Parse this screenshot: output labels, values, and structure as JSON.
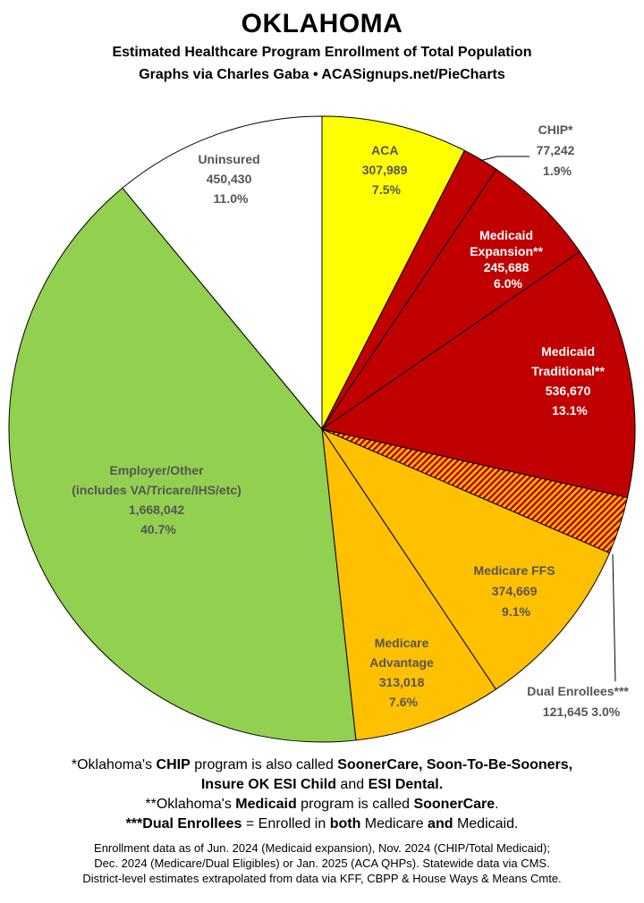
{
  "title": "OKLAHOMA",
  "subtitle1": "Estimated Healthcare Program Enrollment of Total Population",
  "subtitle2": "Graphs via Charles Gaba  •  ACASignups.net/PieCharts",
  "chart_data": {
    "type": "pie",
    "slices": [
      {
        "label": "ACA",
        "value": 307989,
        "value_text": "307,989",
        "percent": 7.5,
        "percent_text": "7.5%",
        "color": "#ffff00"
      },
      {
        "label": "CHIP*",
        "value": 77242,
        "value_text": "77,242",
        "percent": 1.9,
        "percent_text": "1.9%",
        "color": "#c00000"
      },
      {
        "label": "Medicaid Expansion**",
        "value": 245688,
        "value_text": "245,688",
        "percent": 6.0,
        "percent_text": "6.0%",
        "color": "#c00000"
      },
      {
        "label": "Medicaid Traditional**",
        "value": 536670,
        "value_text": "536,670",
        "percent": 13.1,
        "percent_text": "13.1%",
        "color": "#c00000"
      },
      {
        "label": "Dual Enrollees***",
        "value": 121645,
        "value_text": "121,645",
        "percent": 3.0,
        "percent_text": "3.0%",
        "color": "#c00000",
        "pattern": "hatched"
      },
      {
        "label": "Medicare FFS",
        "value": 374669,
        "value_text": "374,669",
        "percent": 9.1,
        "percent_text": "9.1%",
        "color": "#ffc000"
      },
      {
        "label": "Medicare Advantage",
        "value": 313018,
        "value_text": "313,018",
        "percent": 7.6,
        "percent_text": "7.6%",
        "color": "#ffc000"
      },
      {
        "label": "Employer/Other (includes VA/Tricare/IHS/etc)",
        "value": 1668042,
        "value_text": "1,668,042",
        "percent": 40.7,
        "percent_text": "40.7%",
        "color": "#92d050"
      },
      {
        "label": "Uninsured",
        "value": 450430,
        "value_text": "450,430",
        "percent": 11.0,
        "percent_text": "11.0%",
        "color": "#ffffff"
      }
    ],
    "start": "12 o'clock",
    "direction": "clockwise"
  },
  "labels": {
    "aca": [
      "ACA",
      "307,989",
      "7.5%"
    ],
    "chip": [
      "CHIP*",
      "77,242",
      "1.9%"
    ],
    "medicaid_expansion": [
      "Medicaid",
      "Expansion**",
      "245,688",
      "6.0%"
    ],
    "medicaid_traditional": [
      "Medicaid",
      "Traditional**",
      "536,670",
      "13.1%"
    ],
    "medicare_ffs": [
      "Medicare FFS",
      "374,669",
      "9.1%"
    ],
    "medicare_advantage": [
      "Medicare",
      "Advantage",
      "313,018",
      "7.6%"
    ],
    "dual": [
      "Dual Enrollees***",
      "121,645 3.0%"
    ],
    "employer": [
      "Employer/Other",
      "(includes VA/Tricare/IHS/etc)",
      "1,668,042",
      "40.7%"
    ],
    "uninsured": [
      "Uninsured",
      "450,430",
      "11.0%"
    ]
  },
  "notes": {
    "line1_a": "*Oklahoma's ",
    "line1_b": "CHIP",
    "line1_c": " program is also called ",
    "line1_d": "SoonerCare, Soon-To-Be-Sooners,",
    "line2_a": "Insure OK ESI Child",
    "line2_b": " and ",
    "line2_c": "ESI Dental.",
    "line3_a": "**Oklahoma's ",
    "line3_b": "Medicaid",
    "line3_c": " program is called ",
    "line3_d": "SoonerCare",
    "line3_e": ".",
    "line4_a": "***Dual Enrollees",
    "line4_b": " = Enrolled in ",
    "line4_c": "both",
    "line4_d": " Medicare ",
    "line4_e": "and",
    "line4_f": " Medicaid."
  },
  "footer": {
    "line1": "Enrollment data as of Jun. 2024 (Medicaid expansion), Nov. 2024 (CHIP/Total Medicaid);",
    "line2": "Dec. 2024 (Medicare/Dual Eligibles) or Jan. 2025 (ACA QHPs). Statewide data via CMS.",
    "line3": "District-level estimates extrapolated from data via KFF, CBPP & House Ways & Means Cmte."
  }
}
